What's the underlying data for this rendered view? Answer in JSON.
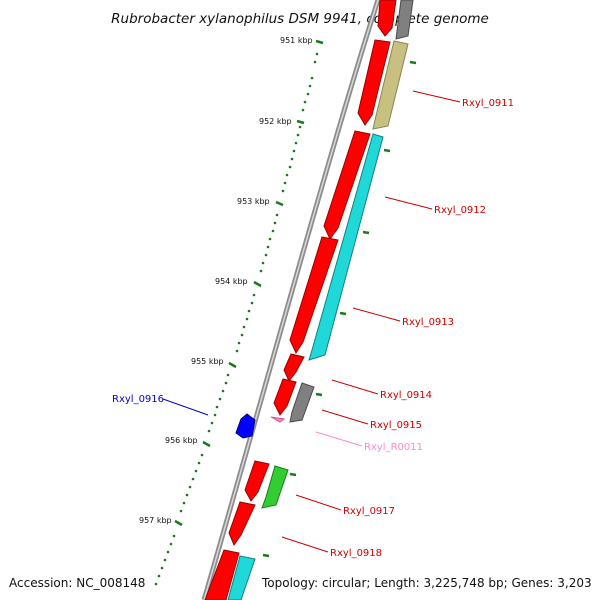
{
  "title": "Rubrobacter xylanophilus DSM 9941, complete genome",
  "footer": {
    "accession": "Accession: NC_008148",
    "topology": "Topology: circular; Length: 3,225,748 bp; Genes: 3,203"
  },
  "ruler": {
    "labels": [
      "951 kbp",
      "952 kbp",
      "953 kbp",
      "954 kbp",
      "955 kbp",
      "956 kbp",
      "957 kbp"
    ]
  },
  "genes": [
    {
      "id": "Rxyl_0911",
      "color": "#d00000"
    },
    {
      "id": "Rxyl_0912",
      "color": "#d00000"
    },
    {
      "id": "Rxyl_0913",
      "color": "#d00000"
    },
    {
      "id": "Rxyl_0914",
      "color": "#d00000"
    },
    {
      "id": "Rxyl_0915",
      "color": "#d00000"
    },
    {
      "id": "Rxyl_R0011",
      "color": "#ff88cc"
    },
    {
      "id": "Rxyl_0916",
      "color": "#0000cc"
    },
    {
      "id": "Rxyl_0917",
      "color": "#d00000"
    },
    {
      "id": "Rxyl_0918",
      "color": "#d00000"
    }
  ],
  "colors": {
    "backbone": "#8c8c8c",
    "cds": "#ff0000",
    "cog_olive": "#c8c080",
    "cog_cyan": "#20d8d8",
    "cog_gray": "#808080",
    "cog_green": "#33cc33",
    "rna": "#ff88cc",
    "minus_strand": "#0000ff",
    "ruler": "#1a7a1a"
  }
}
